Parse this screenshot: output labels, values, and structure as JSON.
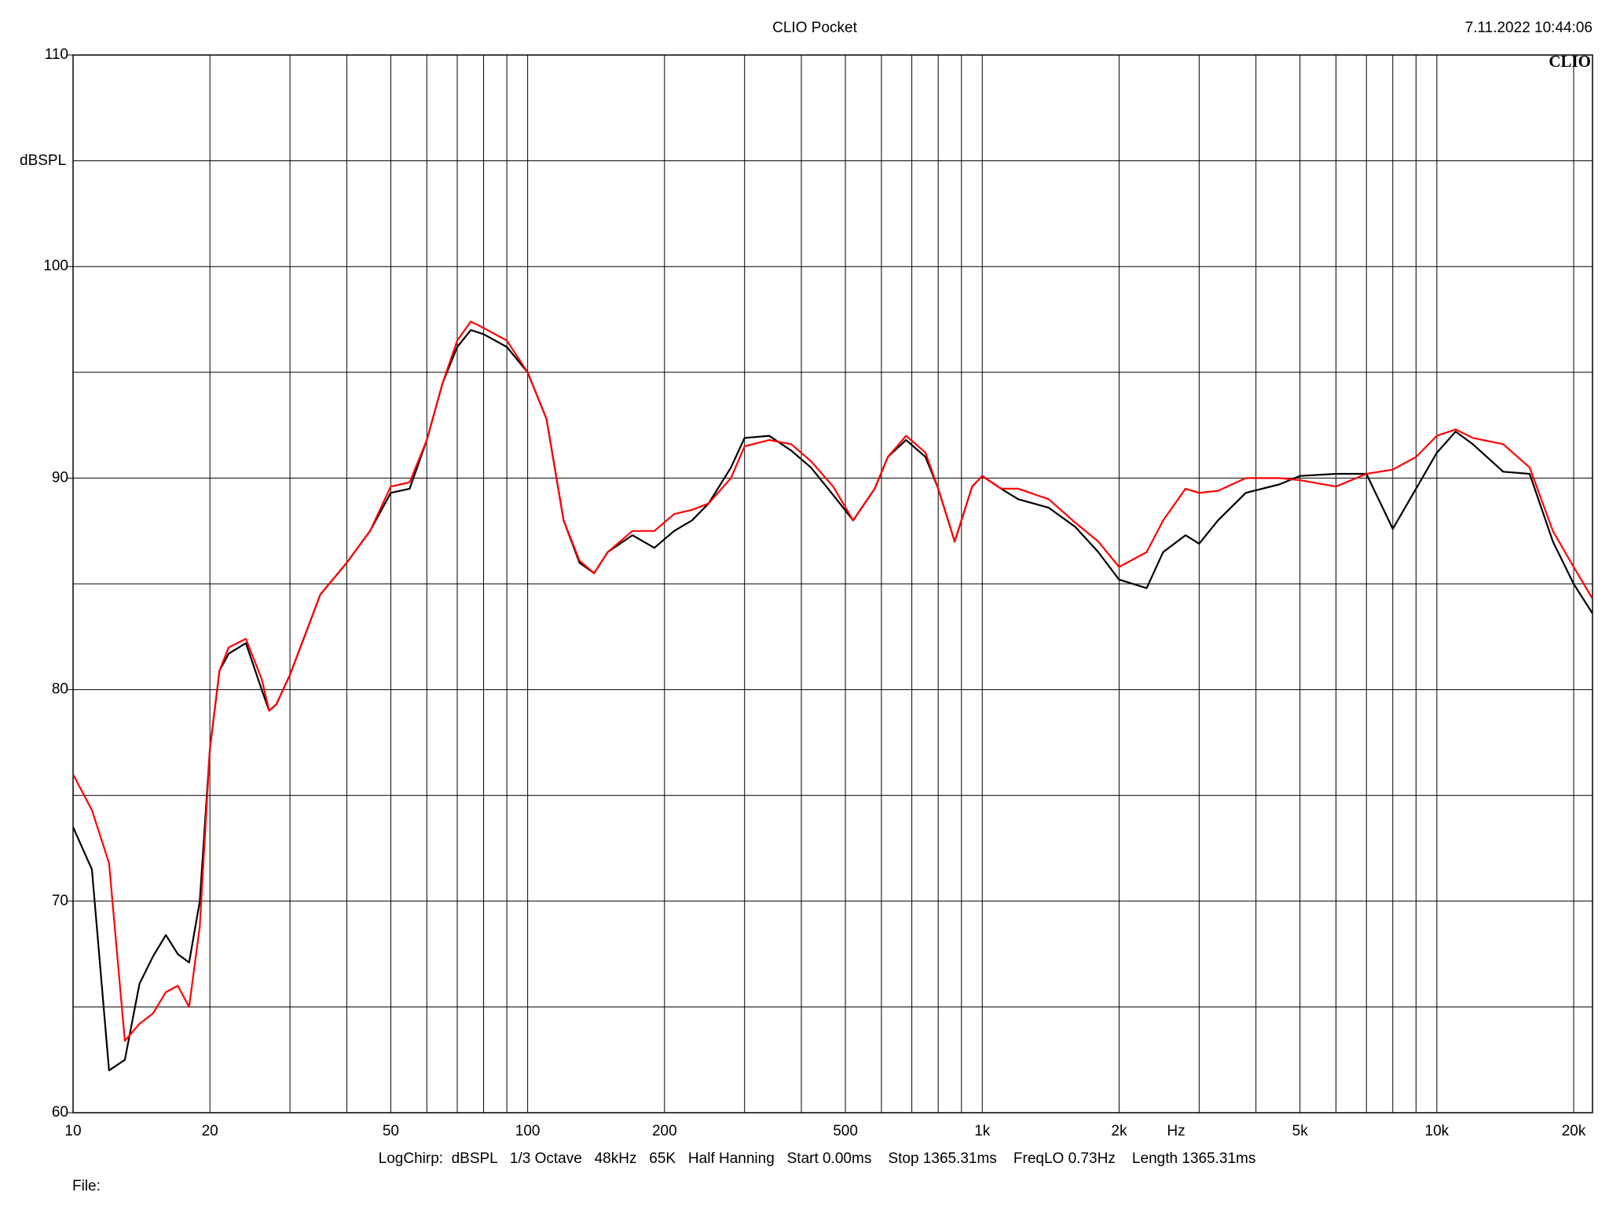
{
  "chart_data": {
    "type": "line",
    "title": "CLIO Pocket",
    "timestamp": "7.11.2022 10:44:06",
    "logo": "CLIO",
    "y_label": "dBSPL",
    "x_label": "Hz",
    "settings_line": "LogChirp:  dBSPL   1/3 Octave   48kHz   65K   Half Hanning   Start 0.00ms    Stop 1365.31ms    FreqLO 0.73Hz    Length 1365.31ms",
    "file_label": "File:",
    "x_log": true,
    "grid": true,
    "xlim": [
      10,
      22000
    ],
    "ylim": [
      60,
      110
    ],
    "xticks": [
      10,
      20,
      50,
      100,
      200,
      500,
      {
        "value": 1000,
        "label": "1k"
      },
      {
        "value": 2000,
        "label": "2k"
      },
      {
        "value": 5000,
        "label": "5k"
      },
      {
        "value": 10000,
        "label": "10k"
      },
      {
        "value": 20000,
        "label": "20k"
      }
    ],
    "x_minor_grid": [
      30,
      40,
      60,
      70,
      80,
      90,
      300,
      400,
      600,
      700,
      800,
      900,
      3000,
      4000,
      6000,
      7000,
      8000,
      9000
    ],
    "yticks": [
      60,
      70,
      80,
      90,
      100,
      110
    ],
    "y_minor_grid": [
      65,
      75,
      85,
      95,
      105
    ],
    "x": [
      10,
      11,
      12,
      13,
      14,
      15,
      16,
      17,
      18,
      19,
      20,
      21,
      22,
      24,
      26,
      27,
      28,
      30,
      35,
      40,
      45,
      50,
      55,
      60,
      65,
      70,
      75,
      80,
      90,
      100,
      110,
      120,
      130,
      140,
      150,
      170,
      190,
      210,
      230,
      250,
      280,
      300,
      340,
      380,
      420,
      470,
      520,
      580,
      620,
      680,
      750,
      800,
      870,
      950,
      1000,
      1100,
      1200,
      1400,
      1600,
      1800,
      2000,
      2300,
      2500,
      2800,
      3000,
      3300,
      3800,
      4500,
      5000,
      6000,
      7000,
      8000,
      9000,
      10000,
      11000,
      12000,
      14000,
      16000,
      18000,
      20000,
      22000
    ],
    "series": [
      {
        "name": "black",
        "color": "#000000",
        "values": [
          73.5,
          71.5,
          62,
          62.5,
          66.1,
          67.4,
          68.4,
          67.5,
          67.1,
          70.0,
          77.2,
          80.9,
          81.7,
          82.2,
          80.0,
          79.0,
          79.3,
          80.7,
          84.5,
          86.0,
          87.5,
          89.3,
          89.5,
          91.8,
          94.5,
          96.2,
          97.0,
          96.8,
          96.2,
          95.0,
          92.8,
          88.0,
          86.0,
          85.5,
          86.5,
          87.3,
          86.7,
          87.5,
          88.0,
          88.8,
          90.5,
          91.9,
          92.0,
          91.3,
          90.5,
          89.2,
          88.0,
          89.5,
          91.0,
          91.8,
          91.0,
          89.5,
          87.0,
          89.6,
          90.1,
          89.5,
          89.0,
          88.6,
          87.7,
          86.5,
          85.2,
          84.8,
          86.5,
          87.3,
          86.9,
          88.0,
          89.3,
          89.7,
          90.1,
          90.2,
          90.2,
          87.6,
          89.5,
          91.2,
          92.2,
          91.6,
          90.3,
          90.2,
          87.0,
          85.0,
          83.6
        ]
      },
      {
        "name": "red",
        "color": "#ff0000",
        "values": [
          76.0,
          74.3,
          71.8,
          63.4,
          64.2,
          64.7,
          65.7,
          66.0,
          65.0,
          68.8,
          77.2,
          80.9,
          82.0,
          82.4,
          80.5,
          79.0,
          79.3,
          80.7,
          84.5,
          86.0,
          87.5,
          89.6,
          89.8,
          91.8,
          94.5,
          96.5,
          97.4,
          97.1,
          96.5,
          95.0,
          92.8,
          88.0,
          86.1,
          85.5,
          86.5,
          87.5,
          87.5,
          88.3,
          88.5,
          88.8,
          90.0,
          91.5,
          91.8,
          91.6,
          90.8,
          89.6,
          88.0,
          89.5,
          91.0,
          92.0,
          91.2,
          89.5,
          87.0,
          89.6,
          90.1,
          89.5,
          89.5,
          89.0,
          87.9,
          87.0,
          85.8,
          86.5,
          88.0,
          89.5,
          89.3,
          89.4,
          90.0,
          90.0,
          89.9,
          89.6,
          90.2,
          90.4,
          91.0,
          92.0,
          92.3,
          91.9,
          91.6,
          90.5,
          87.5,
          85.8,
          84.3
        ]
      }
    ]
  }
}
